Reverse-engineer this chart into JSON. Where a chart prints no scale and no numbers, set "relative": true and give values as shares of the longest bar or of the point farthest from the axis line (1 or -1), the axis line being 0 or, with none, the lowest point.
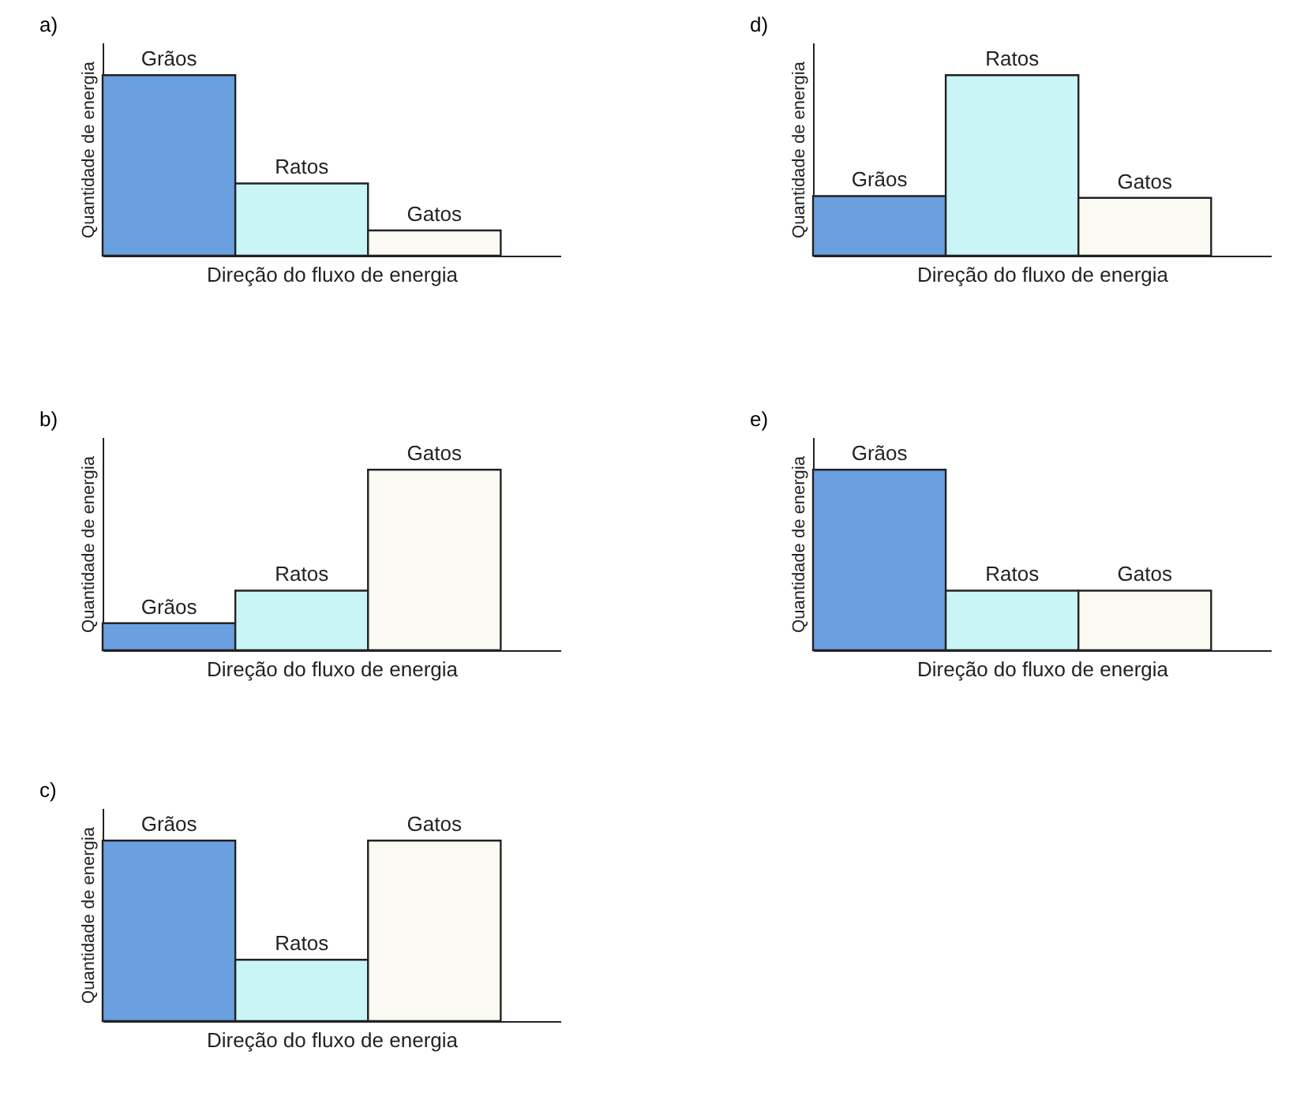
{
  "chart_data": [
    {
      "type": "bar",
      "title": "a)",
      "xlabel": "Direção do fluxo de energia",
      "ylabel": "Quantidade de energia",
      "categories": [
        "Grãos",
        "Ratos",
        "Gatos"
      ],
      "values": [
        1,
        0.4,
        0.14
      ],
      "colors": [
        "#6a9fe0",
        "#c9f5f7",
        "#fafaf2"
      ],
      "relative": true,
      "tick_labels": false
    },
    {
      "type": "bar",
      "title": "b)",
      "xlabel": "Direção do fluxo de energia",
      "ylabel": "Quantidade de energia",
      "categories": [
        "Grãos",
        "Ratos",
        "Gatos"
      ],
      "values": [
        0.15,
        0.33,
        1
      ],
      "colors": [
        "#6a9fe0",
        "#c9f5f7",
        "#fafaf2"
      ],
      "relative": true,
      "tick_labels": false
    },
    {
      "type": "bar",
      "title": "c)",
      "xlabel": "Direção do fluxo de energia",
      "ylabel": "Quantidade de energia",
      "categories": [
        "Grãos",
        "Ratos",
        "Gatos"
      ],
      "values": [
        1,
        0.34,
        1
      ],
      "colors": [
        "#6a9fe0",
        "#c9f5f7",
        "#fafaf2"
      ],
      "relative": true,
      "tick_labels": false
    },
    {
      "type": "bar",
      "title": "d)",
      "xlabel": "Direção do fluxo de energia",
      "ylabel": "Quantidade de energia",
      "categories": [
        "Grãos",
        "Ratos",
        "Gatos"
      ],
      "values": [
        0.33,
        1,
        0.32
      ],
      "colors": [
        "#6a9fe0",
        "#c9f5f7",
        "#fafaf2"
      ],
      "relative": true,
      "tick_labels": false
    },
    {
      "type": "bar",
      "title": "e)",
      "xlabel": "Direção do fluxo de energia",
      "ylabel": "Quantidade de energia",
      "categories": [
        "Grãos",
        "Ratos",
        "Gatos"
      ],
      "values": [
        1,
        0.33,
        0.33
      ],
      "colors": [
        "#6a9fe0",
        "#c9f5f7",
        "#fafaf2"
      ],
      "relative": true,
      "tick_labels": false
    }
  ]
}
